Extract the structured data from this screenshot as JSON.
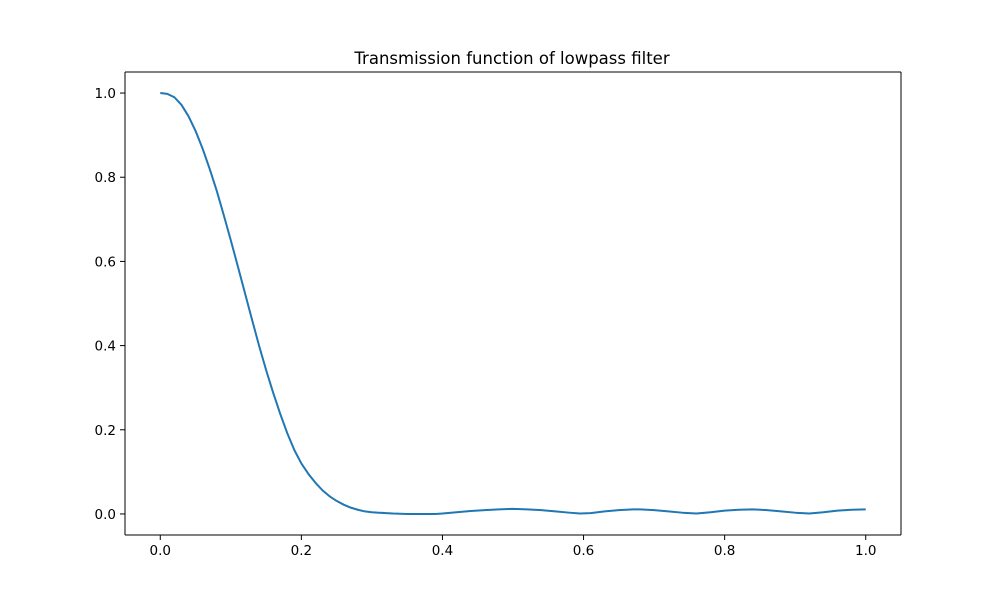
{
  "chart_data": {
    "type": "line",
    "title": "Transmission function of lowpass filter",
    "xlabel": "",
    "ylabel": "",
    "xlim": [
      -0.05,
      1.05
    ],
    "ylim": [
      -0.05,
      1.05
    ],
    "grid": false,
    "xticks": [
      0.0,
      0.2,
      0.4,
      0.6,
      0.8,
      1.0
    ],
    "xtick_labels": [
      "0.0",
      "0.2",
      "0.4",
      "0.6",
      "0.8",
      "1.0"
    ],
    "yticks": [
      0.0,
      0.2,
      0.4,
      0.6,
      0.8,
      1.0
    ],
    "ytick_labels": [
      "0.0",
      "0.2",
      "0.4",
      "0.6",
      "0.8",
      "1.0"
    ],
    "series": [
      {
        "color": "#1f77b4",
        "x": [
          0.0,
          0.01,
          0.02,
          0.03,
          0.04,
          0.05,
          0.06,
          0.07,
          0.08,
          0.09,
          0.1,
          0.11,
          0.12,
          0.13,
          0.14,
          0.15,
          0.16,
          0.17,
          0.18,
          0.19,
          0.2,
          0.21,
          0.22,
          0.23,
          0.24,
          0.25,
          0.26,
          0.27,
          0.28,
          0.29,
          0.3,
          0.31,
          0.32,
          0.33,
          0.34,
          0.35,
          0.36,
          0.37,
          0.38,
          0.39,
          0.4,
          0.42,
          0.44,
          0.46,
          0.48,
          0.5,
          0.52,
          0.54,
          0.56,
          0.58,
          0.595,
          0.61,
          0.63,
          0.65,
          0.67,
          0.68,
          0.7,
          0.72,
          0.74,
          0.76,
          0.78,
          0.8,
          0.82,
          0.84,
          0.86,
          0.88,
          0.9,
          0.92,
          0.94,
          0.96,
          0.98,
          1.0
        ],
        "y": [
          1.0,
          0.998,
          0.99,
          0.972,
          0.945,
          0.91,
          0.868,
          0.82,
          0.768,
          0.71,
          0.65,
          0.588,
          0.525,
          0.462,
          0.4,
          0.342,
          0.288,
          0.238,
          0.192,
          0.152,
          0.12,
          0.095,
          0.074,
          0.056,
          0.042,
          0.031,
          0.022,
          0.015,
          0.01,
          0.006,
          0.004,
          0.003,
          0.002,
          0.001,
          0.0005,
          0.0,
          0.0,
          0.0,
          0.0,
          0.0,
          0.001,
          0.004,
          0.007,
          0.009,
          0.011,
          0.012,
          0.011,
          0.009,
          0.006,
          0.003,
          0.001,
          0.002,
          0.006,
          0.009,
          0.011,
          0.011,
          0.009,
          0.006,
          0.003,
          0.001,
          0.004,
          0.008,
          0.01,
          0.011,
          0.009,
          0.006,
          0.003,
          0.001,
          0.004,
          0.008,
          0.01,
          0.011
        ]
      }
    ]
  }
}
